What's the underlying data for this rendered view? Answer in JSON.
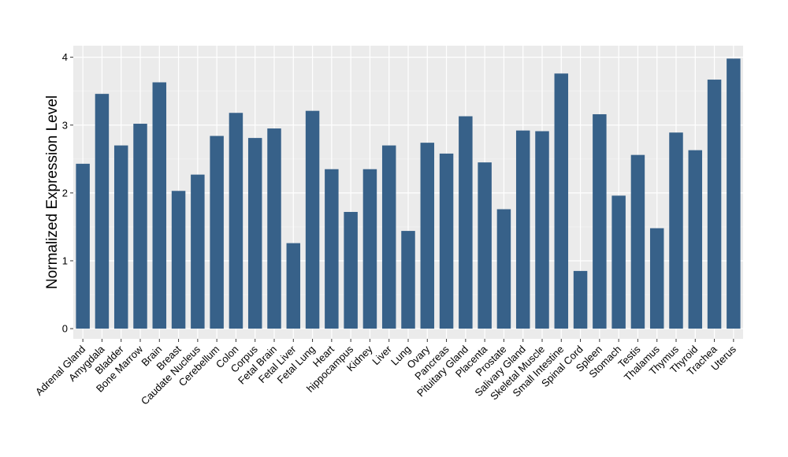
{
  "chart_data": {
    "type": "bar",
    "title": "",
    "xlabel": "",
    "ylabel": "Normalized Expression Level",
    "ylim": [
      -0.15,
      4.17
    ],
    "yticks": [
      0,
      1,
      2,
      3,
      4
    ],
    "grid": true,
    "bar_color": "#376189",
    "panel_color": "#EBEBEB",
    "categories": [
      "Adrenal Gland",
      "Amygdala",
      "Bladder",
      "Bone Marrow",
      "Brain",
      "Breast",
      "Caudate Nucleus",
      "Cerebellum",
      "Colon",
      "Corpus",
      "Fetal Brain",
      "Fetal Liver",
      "Fetal Lung",
      "Heart",
      "hippocampus",
      "Kidney",
      "Liver",
      "Lung",
      "Ovary",
      "Pancreas",
      "Pituitary Gland",
      "Placenta",
      "Prostate",
      "Salivary Gland",
      "Skeletal Muscle",
      "Small Intestine",
      "Spinal Cord",
      "Spleen",
      "Stomach",
      "Testis",
      "Thalamus",
      "Thymus",
      "Thyroid",
      "Trachea",
      "Uterus"
    ],
    "values": [
      2.43,
      3.46,
      2.7,
      3.02,
      3.63,
      2.03,
      2.27,
      2.84,
      3.18,
      2.81,
      2.95,
      1.26,
      3.21,
      2.35,
      1.72,
      2.35,
      2.7,
      1.44,
      2.74,
      2.58,
      3.13,
      2.45,
      1.76,
      2.92,
      2.91,
      3.76,
      0.85,
      3.16,
      1.96,
      2.56,
      1.48,
      2.89,
      2.63,
      3.67,
      3.98
    ]
  }
}
